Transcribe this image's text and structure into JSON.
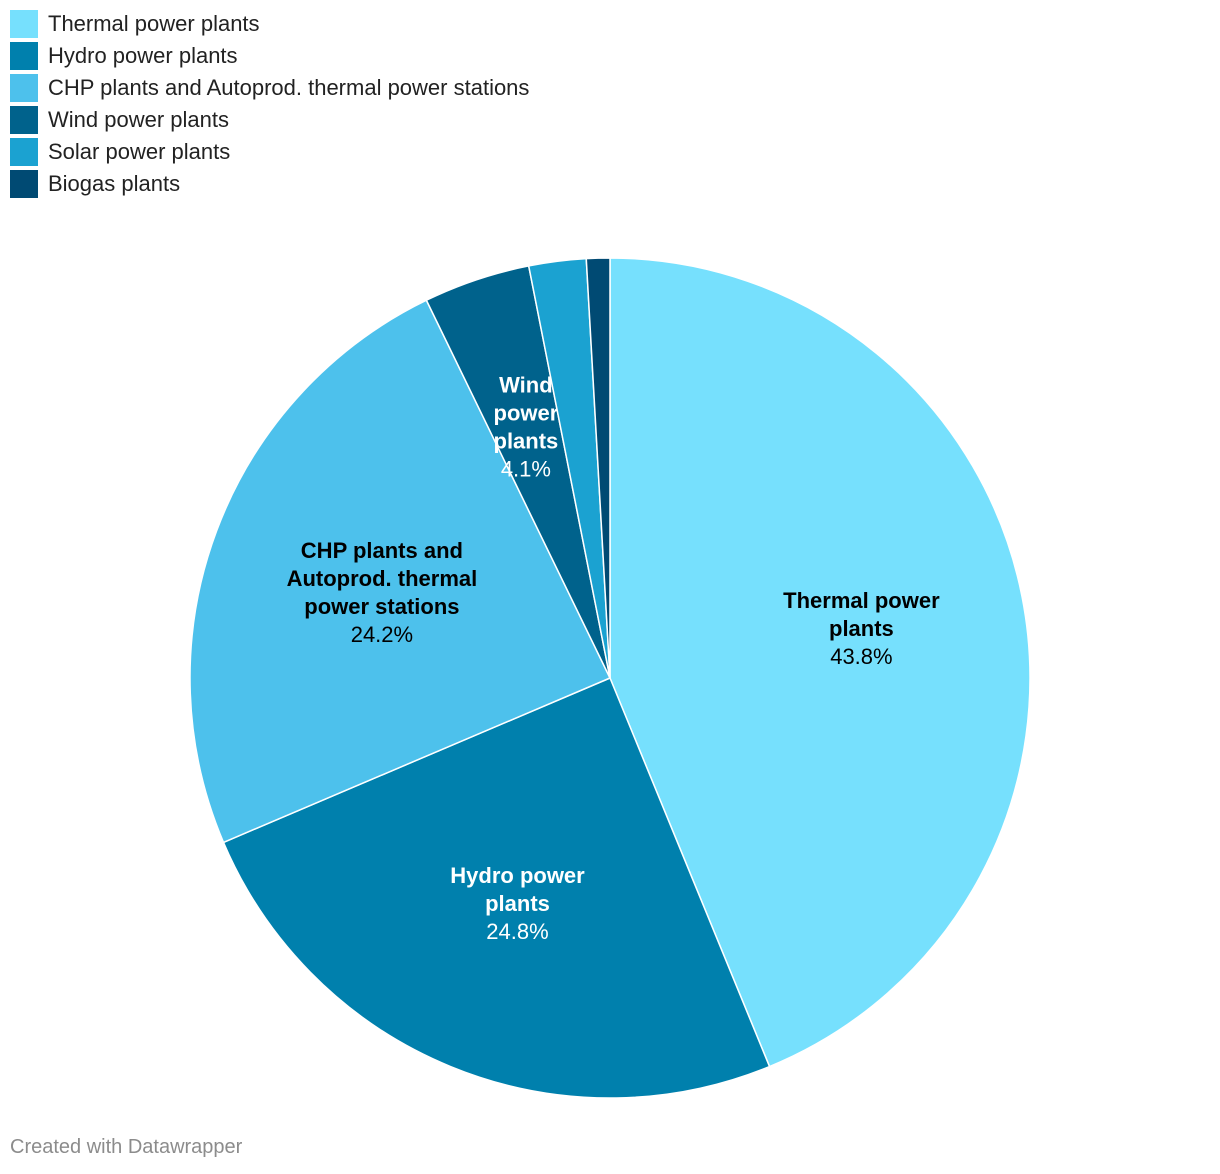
{
  "chart_data": {
    "type": "pie",
    "title": "",
    "categories": [
      "Thermal power plants",
      "Hydro power plants",
      "CHP plants and Autoprod. thermal power stations",
      "Wind power plants",
      "Solar power plants",
      "Biogas plants"
    ],
    "values": [
      43.8,
      24.8,
      24.2,
      4.1,
      2.2,
      0.9
    ],
    "value_labels": [
      "43.8%",
      "24.8%",
      "24.2%",
      "4.1%",
      "",
      ""
    ],
    "slice_label_lines": [
      [
        "Thermal power",
        "plants"
      ],
      [
        "Hydro power",
        "plants"
      ],
      [
        "CHP plants and",
        "Autoprod. thermal",
        "power stations"
      ],
      [
        "Wind",
        "power",
        "plants"
      ],
      [],
      []
    ],
    "label_colors": [
      "#000000",
      "#ffffff",
      "#000000",
      "#ffffff",
      "#ffffff",
      "#ffffff"
    ],
    "colors": [
      "#76e0fd",
      "#0080ad",
      "#4dc1ec",
      "#00628c",
      "#1ba2d1",
      "#004a73"
    ],
    "legend_position": "top-left"
  },
  "footer": {
    "credit": "Created with Datawrapper"
  }
}
